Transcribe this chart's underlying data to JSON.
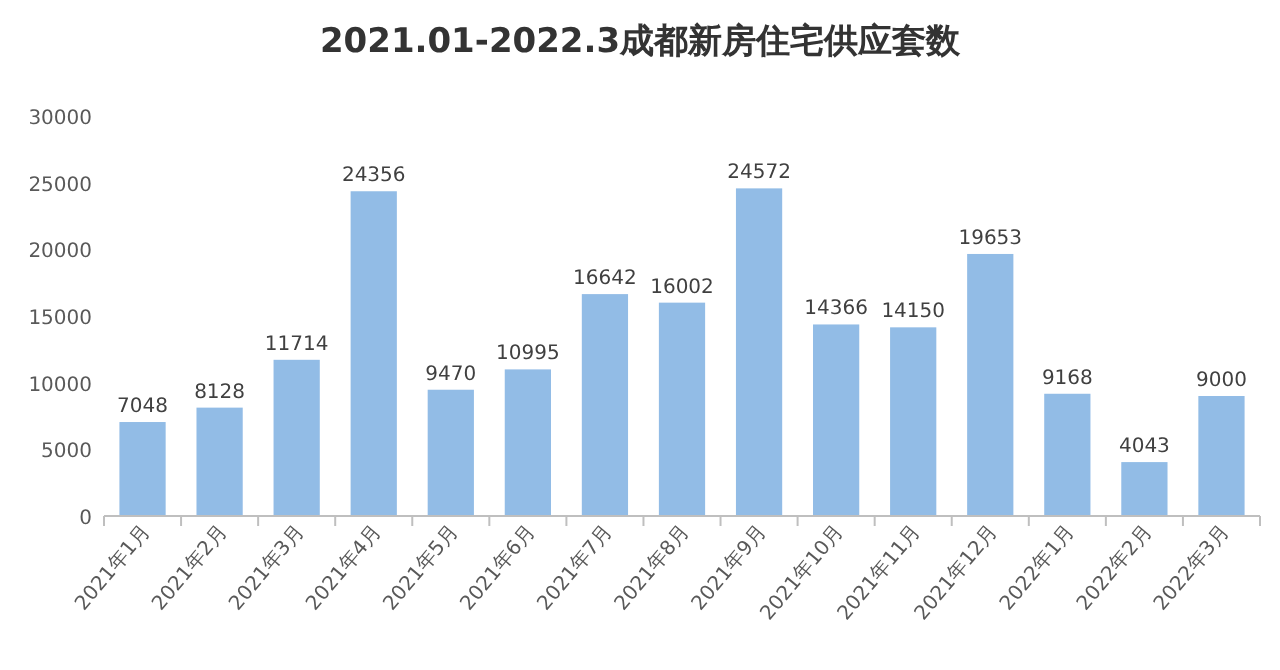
{
  "chart_data": {
    "type": "bar",
    "title": "2021.01-2022.3成都新房住宅供应套数",
    "categories": [
      "2021年1月",
      "2021年2月",
      "2021年3月",
      "2021年4月",
      "2021年5月",
      "2021年6月",
      "2021年7月",
      "2021年8月",
      "2021年9月",
      "2021年10月",
      "2021年11月",
      "2021年12月",
      "2022年1月",
      "2022年2月",
      "2022年3月"
    ],
    "values": [
      7048,
      8128,
      11714,
      24356,
      9470,
      10995,
      16642,
      16002,
      24572,
      14366,
      14150,
      19653,
      9168,
      4043,
      9000
    ],
    "color": "#92bce6",
    "ylim": [
      0,
      30000
    ],
    "yticks": [
      0,
      5000,
      10000,
      15000,
      20000,
      25000,
      30000
    ],
    "data_labels": true
  }
}
